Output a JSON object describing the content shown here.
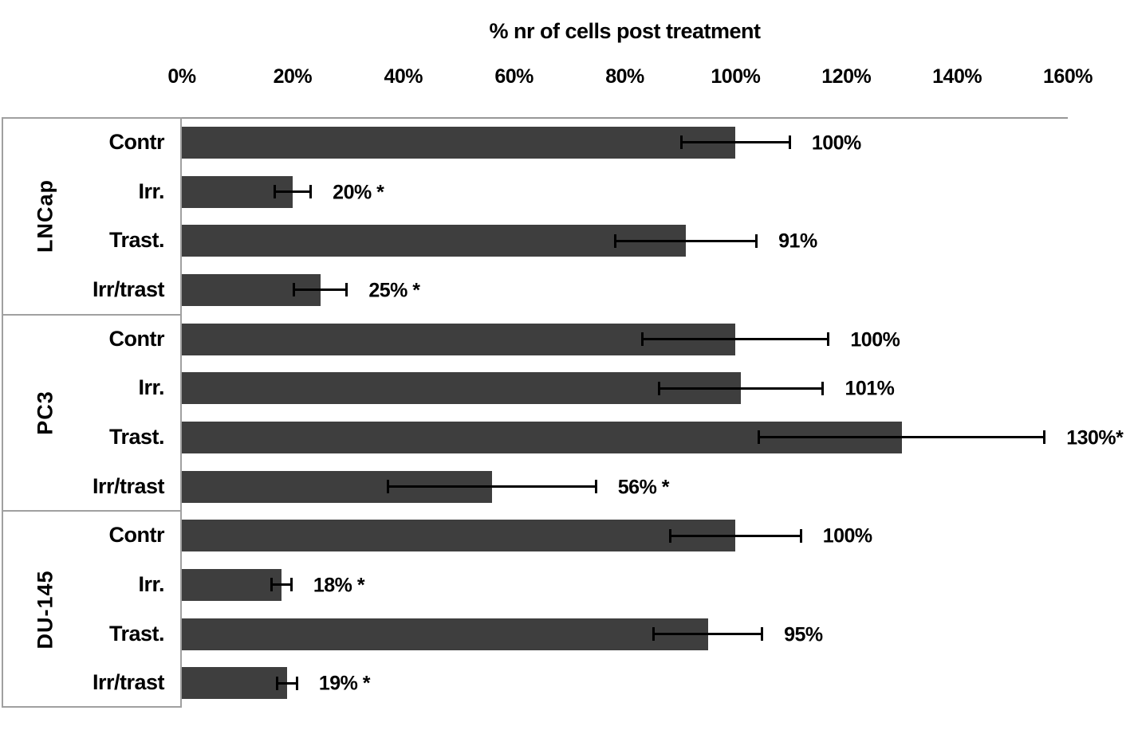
{
  "chart_data": {
    "type": "bar",
    "orientation": "horizontal",
    "title": "% nr of cells post treatment",
    "xlabel": "",
    "ylabel": "",
    "xlim": [
      0,
      160
    ],
    "x_ticks": [
      "0%",
      "20%",
      "40%",
      "60%",
      "80%",
      "100%",
      "120%",
      "140%",
      "160%"
    ],
    "grid": false,
    "legend": "none",
    "error_bars": true,
    "groups": [
      {
        "name": "LNCap",
        "rows": [
          {
            "category": "Contr",
            "value": 100,
            "error": 10,
            "label": "100%"
          },
          {
            "category": "Irr.",
            "value": 20,
            "error": 3.5,
            "label": "20% *"
          },
          {
            "category": "Trast.",
            "value": 91,
            "error": 13,
            "label": "91%"
          },
          {
            "category": "Irr/trast",
            "value": 25,
            "error": 5,
            "label": "25% *"
          }
        ]
      },
      {
        "name": "PC3",
        "rows": [
          {
            "category": "Contr",
            "value": 100,
            "error": 17,
            "label": "100%"
          },
          {
            "category": "Irr.",
            "value": 101,
            "error": 15,
            "label": "101%"
          },
          {
            "category": "Trast.",
            "value": 130,
            "error": 26,
            "label": "130%*"
          },
          {
            "category": "Irr/trast",
            "value": 56,
            "error": 19,
            "label": "56% *"
          }
        ]
      },
      {
        "name": "DU-145",
        "rows": [
          {
            "category": "Contr",
            "value": 100,
            "error": 12,
            "label": "100%"
          },
          {
            "category": "Irr.",
            "value": 18,
            "error": 2,
            "label": "18% *"
          },
          {
            "category": "Trast.",
            "value": 95,
            "error": 10,
            "label": "95%"
          },
          {
            "category": "Irr/trast",
            "value": 19,
            "error": 2,
            "label": "19% *"
          }
        ]
      }
    ],
    "colors": {
      "bar": "#3e3e3e",
      "error_bar": "#000000",
      "text": "#000000",
      "frame": "#a0a0a0"
    }
  }
}
